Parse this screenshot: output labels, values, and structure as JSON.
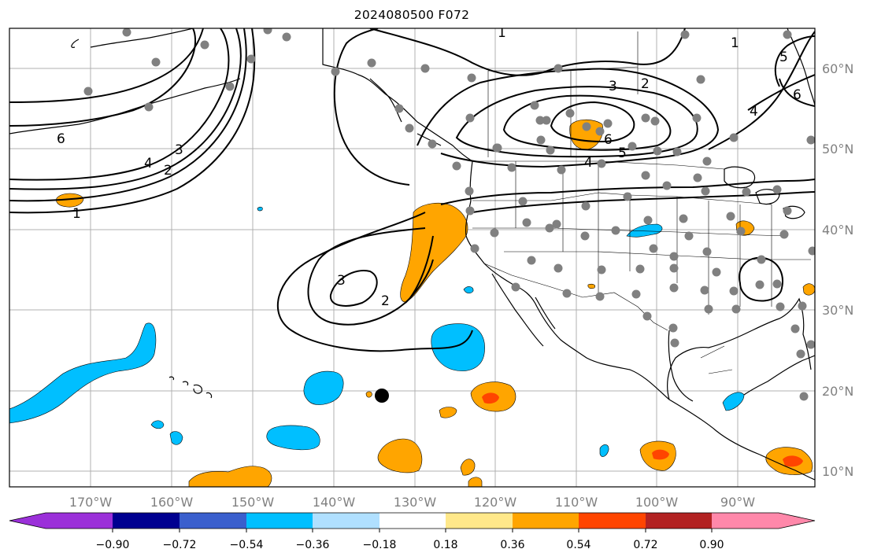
{
  "title": "2024080500 F072",
  "longitude_labels": [
    "170°W",
    "160°W",
    "150°W",
    "140°W",
    "130°W",
    "120°W",
    "110°W",
    "100°W",
    "90°W"
  ],
  "latitude_labels": [
    "60°N",
    "50°N",
    "40°N",
    "30°N",
    "20°N",
    "10°N"
  ],
  "colorbar": {
    "tick_labels": [
      "−0.90",
      "−0.72",
      "−0.54",
      "−0.36",
      "−0.18",
      "0.18",
      "0.36",
      "0.54",
      "0.72",
      "0.90"
    ],
    "colors": [
      "#9b30d9",
      "#000090",
      "#3a5fcd",
      "#00bfff",
      "#b0e0ff",
      "#ffffff",
      "#ffe88a",
      "#ffa500",
      "#ff4500",
      "#b22222",
      "#ff88aa"
    ]
  },
  "fill_colors": {
    "light_blue": "#00bfff",
    "orange": "#ffa500",
    "red_orange": "#ff4500"
  },
  "contour_labels": [
    "1",
    "2",
    "3",
    "4",
    "5",
    "6",
    "1",
    "2",
    "3",
    "4",
    "5",
    "6",
    "1",
    "2",
    "3",
    "4",
    "6",
    "1",
    "2",
    "3",
    "4",
    "5",
    "6"
  ],
  "station_dot_color": "#808080"
}
